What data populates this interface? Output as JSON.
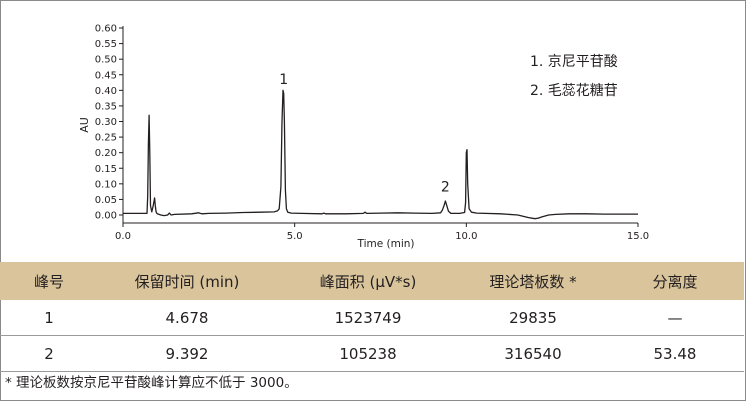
{
  "chart_data": {
    "type": "line",
    "title": "",
    "xlabel": "Time (min)",
    "ylabel": "AU",
    "xlim": [
      0,
      15
    ],
    "ylim": [
      0,
      0.6
    ],
    "x_ticks": [
      "0.0",
      "5.0",
      "10.0",
      "15.0"
    ],
    "y_ticks": [
      "0.00",
      "0.05",
      "0.10",
      "0.15",
      "0.20",
      "0.25",
      "0.30",
      "0.35",
      "0.40",
      "0.45",
      "0.50",
      "0.55",
      "0.60"
    ],
    "grid": false,
    "line_color": "#231f20",
    "legend_position": "top-right",
    "legend": [
      "1. 京尼平苷酸",
      "2. 毛蕊花糖苷"
    ],
    "peak_labels": [
      {
        "text": "1",
        "x": 4.68,
        "y": 0.42
      },
      {
        "text": "2",
        "x": 9.39,
        "y": 0.075
      }
    ],
    "series": [
      {
        "x": [
          0.0,
          0.7,
          0.72,
          0.74,
          0.76,
          0.78,
          0.8,
          0.84,
          0.88,
          0.92,
          0.94,
          0.96,
          0.98,
          1.0,
          1.05,
          1.1,
          1.2,
          1.3,
          1.35,
          1.4,
          1.5,
          2.0,
          2.2,
          2.25,
          2.3,
          2.5,
          3.0,
          3.5,
          4.0,
          4.4,
          4.5,
          4.55,
          4.6,
          4.63,
          4.66,
          4.68,
          4.7,
          4.73,
          4.76,
          4.8,
          4.9,
          5.2,
          5.8,
          5.85,
          5.9,
          6.5,
          7.0,
          7.05,
          7.1,
          7.5,
          8.0,
          8.5,
          9.0,
          9.25,
          9.3,
          9.35,
          9.39,
          9.43,
          9.48,
          9.55,
          9.8,
          9.95,
          9.98,
          10.0,
          10.02,
          10.04,
          10.08,
          10.15,
          10.3,
          11.0,
          11.5,
          11.8,
          12.0,
          12.1,
          12.2,
          12.4,
          12.6,
          13.0,
          13.5,
          14.0,
          15.0
        ],
        "y": [
          0.005,
          0.005,
          0.06,
          0.23,
          0.32,
          0.2,
          0.03,
          0.01,
          0.03,
          0.055,
          0.03,
          0.012,
          0.006,
          0.004,
          0.002,
          0.0,
          -0.002,
          0.0,
          0.006,
          0.0,
          0.002,
          0.004,
          0.007,
          0.005,
          0.004,
          0.005,
          0.006,
          0.008,
          0.009,
          0.01,
          0.013,
          0.02,
          0.09,
          0.3,
          0.4,
          0.39,
          0.3,
          0.08,
          0.02,
          0.009,
          0.006,
          0.005,
          0.004,
          0.006,
          0.004,
          0.004,
          0.005,
          0.009,
          0.005,
          0.006,
          0.007,
          0.006,
          0.005,
          0.007,
          0.015,
          0.03,
          0.045,
          0.03,
          0.012,
          0.005,
          0.005,
          0.008,
          0.04,
          0.2,
          0.21,
          0.1,
          0.02,
          0.009,
          0.006,
          0.004,
          0.0,
          -0.008,
          -0.012,
          -0.01,
          -0.006,
          0.0,
          0.002,
          0.004,
          0.004,
          0.003,
          0.003
        ]
      }
    ]
  },
  "table": {
    "headers": [
      "峰号",
      "保留时间 (min)",
      "峰面积 (μV*s)",
      "理论塔板数 *",
      "分离度"
    ],
    "rows": [
      [
        "1",
        "4.678",
        "1523749",
        "29835",
        "—"
      ],
      [
        "2",
        "9.392",
        "105238",
        "316540",
        "53.48"
      ]
    ]
  },
  "footnote": "* 理论板数按京尼平苷酸峰计算应不低于 3000。"
}
